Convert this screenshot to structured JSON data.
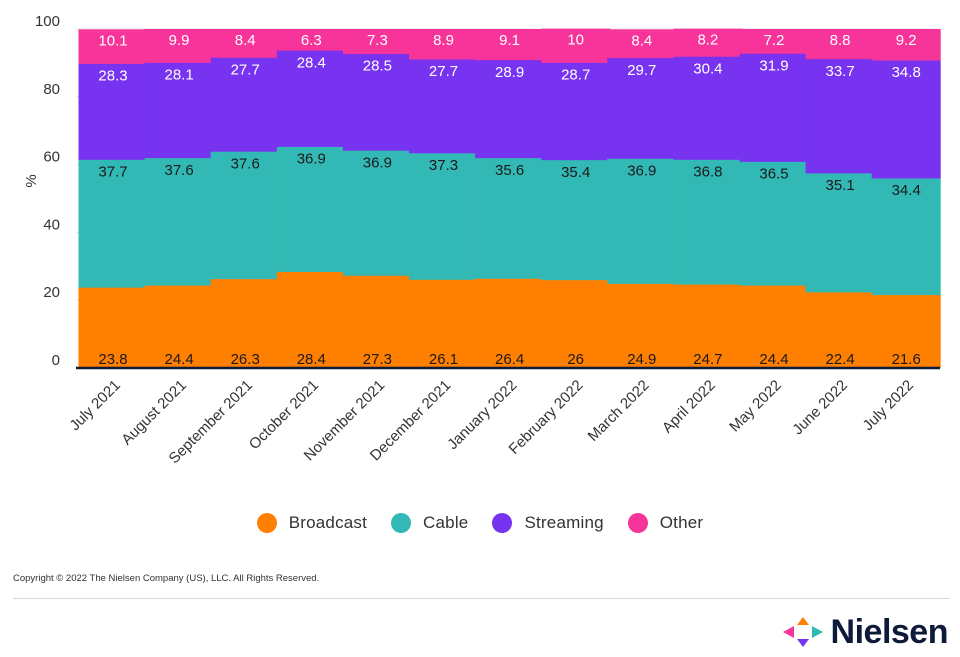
{
  "chart_data": {
    "type": "bar",
    "stacked": true,
    "ylabel": "%",
    "ylim": [
      0,
      100
    ],
    "yticks": [
      0,
      20,
      40,
      60,
      80,
      100
    ],
    "grid": true,
    "legend_position": "bottom",
    "categories": [
      "July 2021",
      "August 2021",
      "September 2021",
      "October 2021",
      "November 2021",
      "December 2021",
      "January 2022",
      "February 2022",
      "March 2022",
      "April 2022",
      "May 2022",
      "June 2022",
      "July 2022"
    ],
    "series": [
      {
        "name": "Broadcast",
        "color": "#FF7F00",
        "values": [
          23.8,
          24.4,
          26.3,
          28.4,
          27.3,
          26.1,
          26.4,
          26,
          24.9,
          24.7,
          24.4,
          22.4,
          21.6
        ]
      },
      {
        "name": "Cable",
        "color": "#33B9B5",
        "values": [
          37.7,
          37.6,
          37.6,
          36.9,
          36.9,
          37.3,
          35.6,
          35.4,
          36.9,
          36.8,
          36.5,
          35.1,
          34.4
        ]
      },
      {
        "name": "Streaming",
        "color": "#7733F0",
        "values": [
          28.3,
          28.1,
          27.7,
          28.4,
          28.5,
          27.7,
          28.9,
          28.7,
          29.7,
          30.4,
          31.9,
          33.7,
          34.8
        ]
      },
      {
        "name": "Other",
        "color": "#F7349A",
        "values": [
          10.1,
          9.9,
          8.4,
          6.3,
          7.3,
          8.9,
          9.1,
          10,
          8.4,
          8.2,
          7.2,
          8.8,
          9.2
        ]
      }
    ]
  },
  "legend": [
    {
      "label": "Broadcast",
      "color": "#FF7F00"
    },
    {
      "label": "Cable",
      "color": "#33B9B5"
    },
    {
      "label": "Streaming",
      "color": "#7733F0"
    },
    {
      "label": "Other",
      "color": "#F7349A"
    }
  ],
  "footer": {
    "copyright": "Copyright © 2022 The Nielsen Company (US), LLC. All Rights Reserved.",
    "brand": "Nielsen"
  }
}
